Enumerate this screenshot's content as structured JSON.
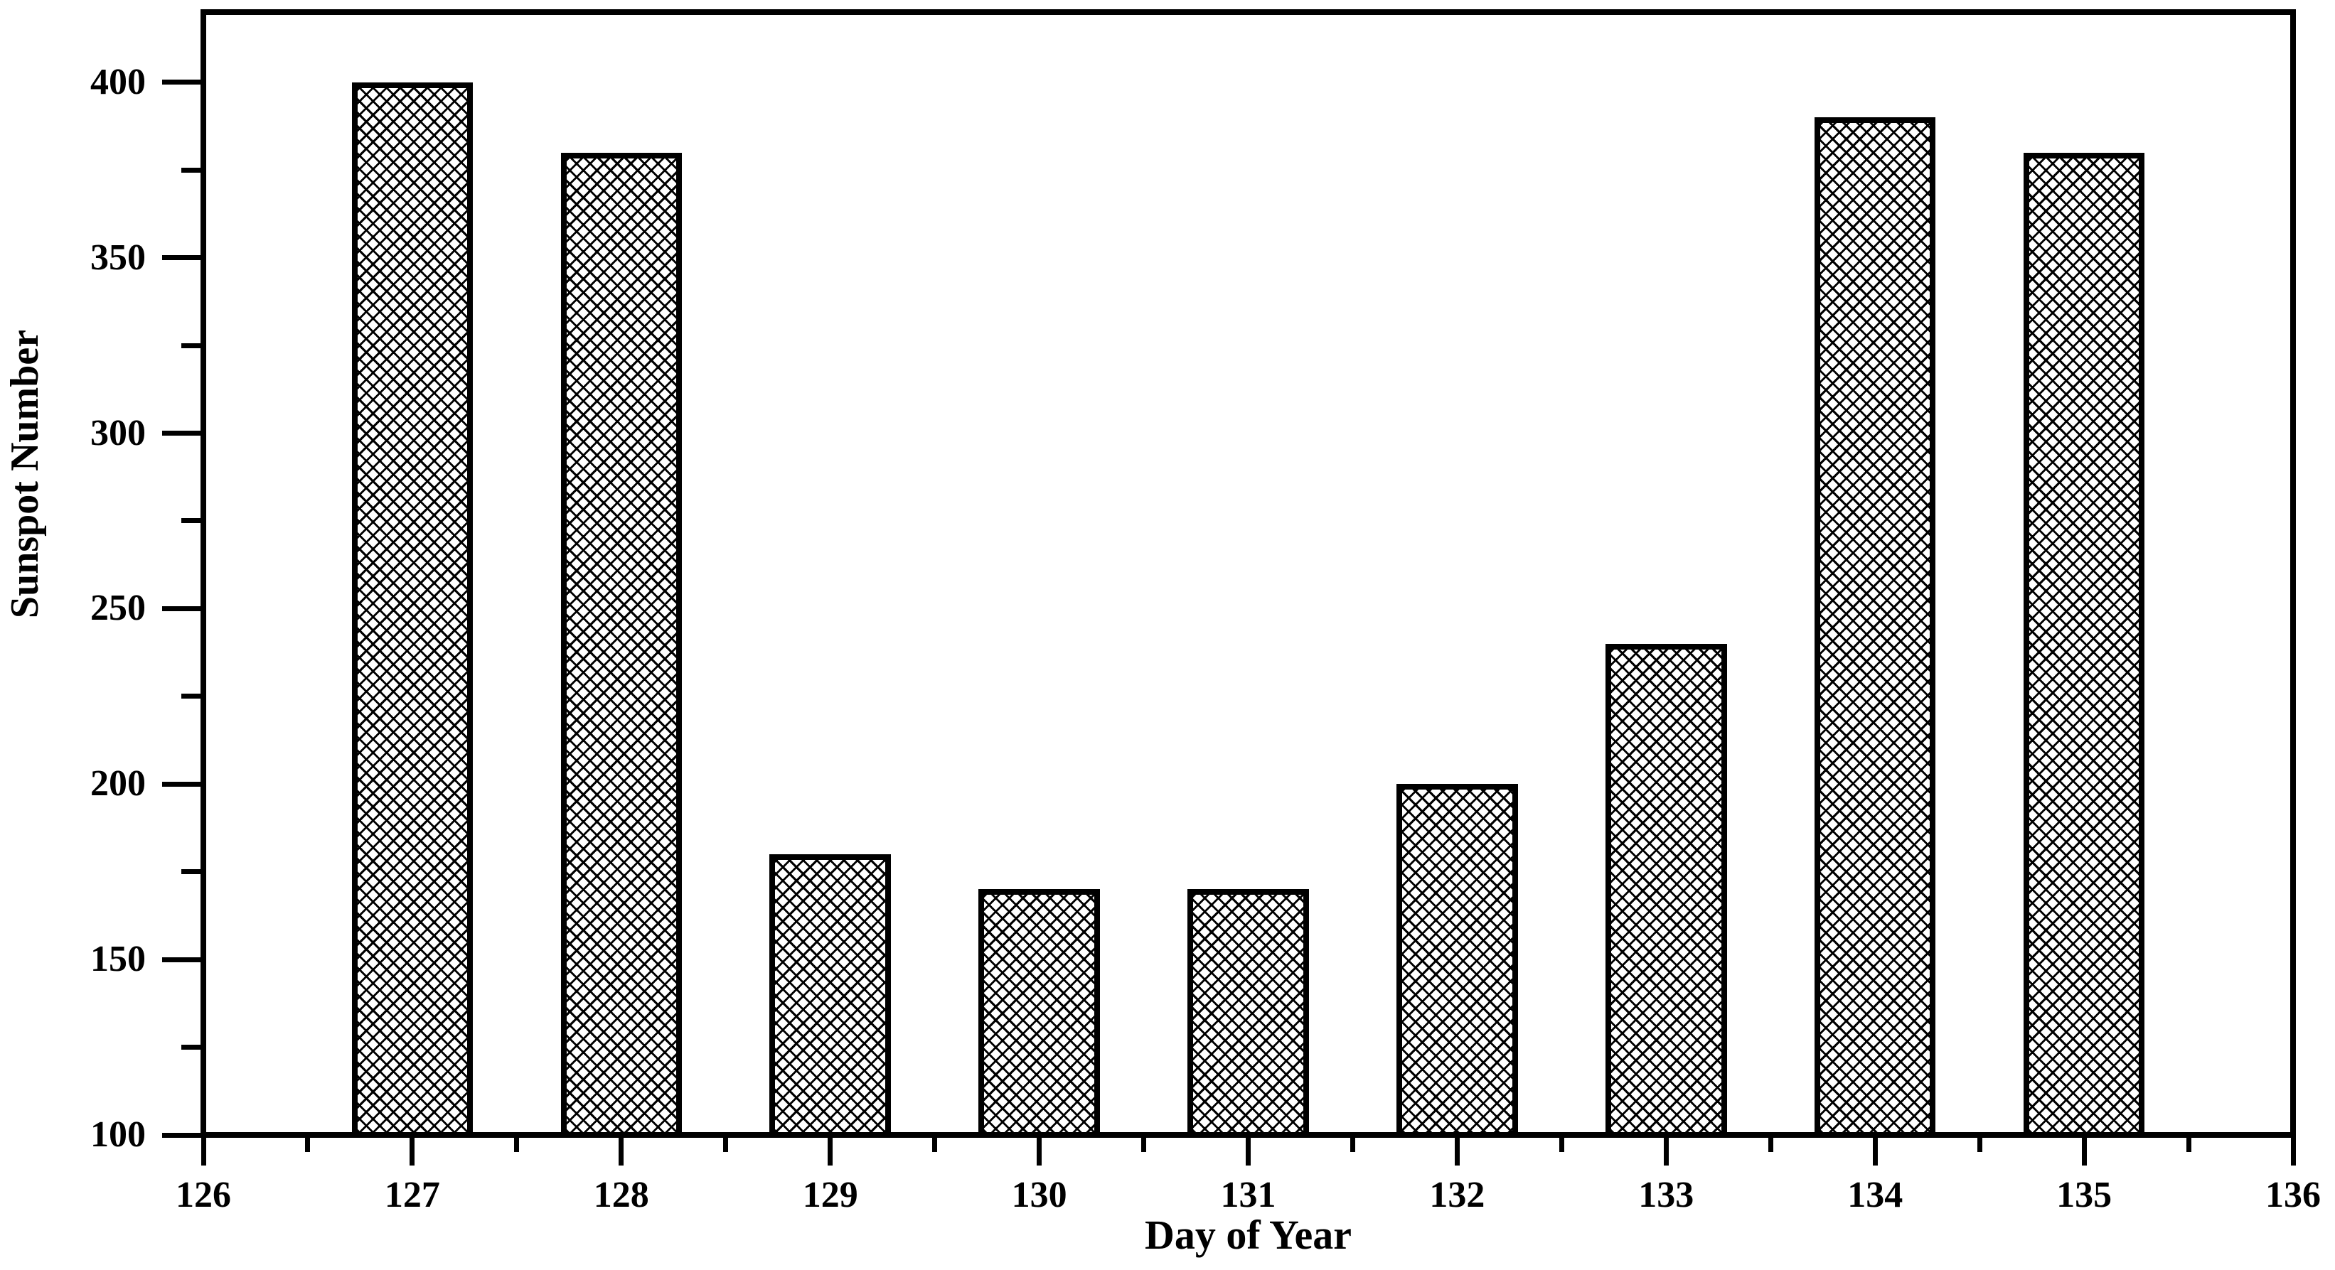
{
  "chart_data": {
    "type": "bar",
    "title": "",
    "xlabel": "Day of Year",
    "ylabel": "Sunspot Number",
    "x": [
      127,
      128,
      129,
      130,
      131,
      132,
      133,
      134,
      135
    ],
    "values": [
      400,
      380,
      180,
      170,
      170,
      200,
      240,
      390,
      380
    ],
    "xlim": [
      126,
      136
    ],
    "ylim": [
      100,
      420
    ],
    "x_major_ticks": [
      126,
      127,
      128,
      129,
      130,
      131,
      132,
      133,
      134,
      135,
      136
    ],
    "x_minor_tick_step": 0.5,
    "y_major_ticks": [
      100,
      150,
      200,
      250,
      300,
      350,
      400
    ],
    "y_minor_tick_step": 25,
    "bar_width_days": 0.58,
    "bar_fill_pattern": "crosshatch",
    "bar_outline_color": "#000000",
    "bar_fill_background": "#ffffff",
    "axis_color": "#000000",
    "plot_background": "#ffffff",
    "grid": false,
    "legend": "none"
  }
}
